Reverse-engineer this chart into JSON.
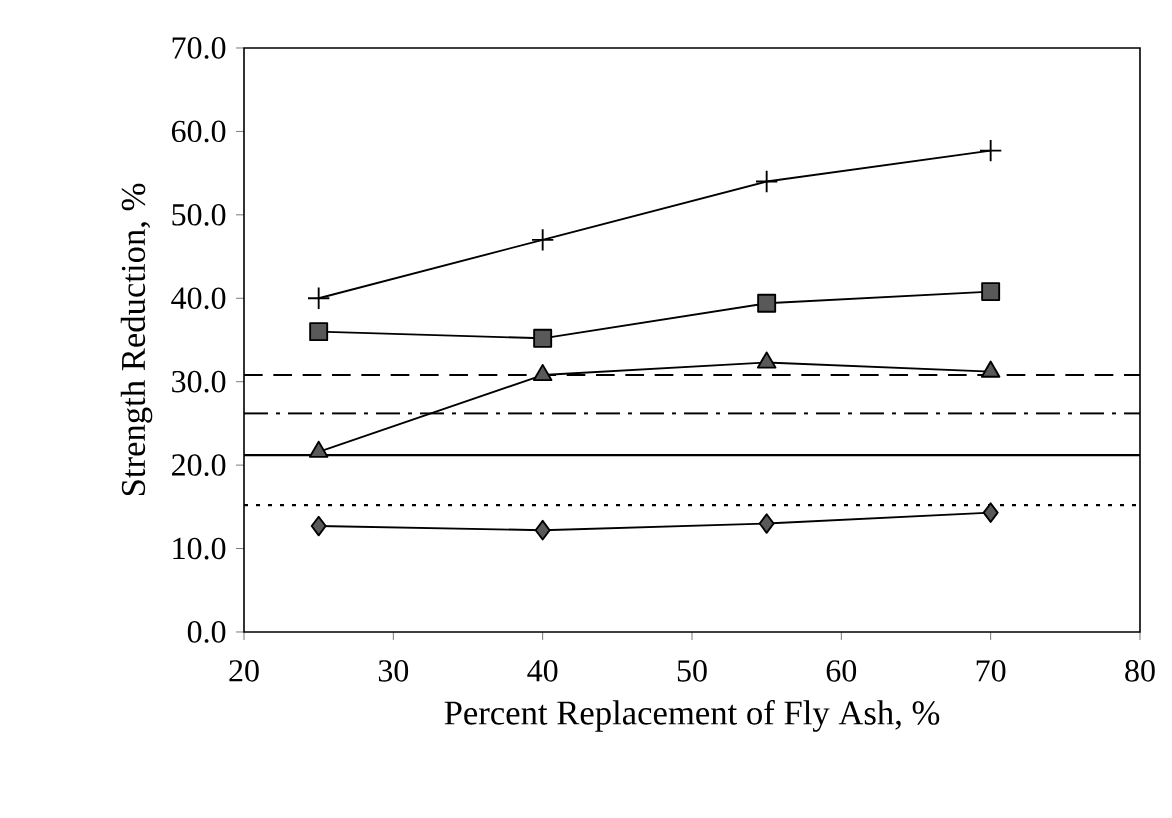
{
  "chart_data": {
    "type": "line",
    "xlabel": "Percent Replacement of Fly Ash, %",
    "ylabel": "Strength Reduction, %",
    "x": [
      25,
      40,
      55,
      70
    ],
    "series": [
      {
        "color": "#000000",
        "marker": "cross",
        "values": [
          40.0,
          47.0,
          54.0,
          57.7
        ]
      },
      {
        "color": "#000000",
        "marker": "square",
        "values": [
          36.0,
          35.2,
          39.4,
          40.8
        ]
      },
      {
        "color": "#000000",
        "marker": "triangle",
        "values": [
          21.6,
          30.8,
          32.3,
          31.2
        ]
      },
      {
        "color": "#000000",
        "marker": "diamond",
        "values": [
          12.7,
          12.2,
          13.0,
          14.3
        ]
      }
    ],
    "ref_lines": [
      {
        "axis": "y",
        "value": 30.8,
        "line_style": "dashed",
        "color": "#000000"
      },
      {
        "axis": "y",
        "value": 26.2,
        "line_style": "dashdotted",
        "color": "#000000"
      },
      {
        "axis": "y",
        "value": 21.2,
        "line_style": "solid",
        "color": "#000000"
      },
      {
        "axis": "y",
        "value": 15.2,
        "line_style": "dotted",
        "color": "#000000"
      }
    ],
    "xlim": [
      20,
      80
    ],
    "xticks": [
      20,
      30,
      40,
      50,
      60,
      70,
      80
    ],
    "ylim": [
      0,
      70
    ],
    "yticks": [
      {
        "value": 0,
        "label": "0.0"
      },
      {
        "value": 10,
        "label": "10.0"
      },
      {
        "value": 20,
        "label": "20.0"
      },
      {
        "value": 30,
        "label": "30.0"
      },
      {
        "value": 40,
        "label": "40.0"
      },
      {
        "value": 50,
        "label": "50.0"
      },
      {
        "value": 60,
        "label": "60.0"
      },
      {
        "value": 70,
        "label": "70.0"
      }
    ],
    "grid": false
  }
}
